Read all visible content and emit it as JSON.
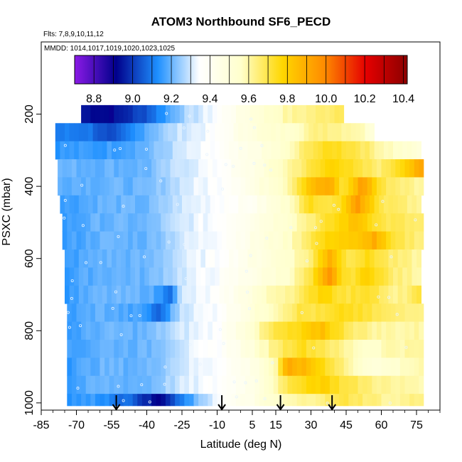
{
  "chart_data": {
    "type": "heatmap",
    "title": "ATOM3 Northbound SF6_PECD",
    "flights_label": "Flts: 7,8,9,10,11,12",
    "dates_label": "MMDD: 1014,1017,1019,1020,1023,1025",
    "xlabel": "Latitude (deg N)",
    "ylabel": "PSXC (mbar)",
    "xlim": [
      -85,
      85
    ],
    "ylim": [
      1020,
      0
    ],
    "x_ticks": [
      -85,
      -70,
      -55,
      -40,
      -25,
      -10,
      5,
      15,
      30,
      45,
      60,
      75
    ],
    "y_ticks": [
      200,
      400,
      600,
      800,
      1000
    ],
    "colorbar": {
      "min": 8.7,
      "max": 10.42,
      "ticks": [
        8.8,
        9.0,
        9.2,
        9.4,
        9.6,
        9.8,
        10.0,
        10.2,
        10.4
      ],
      "colors": [
        "#8b1ae6",
        "#00008b",
        "#1e90ff",
        "#ffffff",
        "#ffffcc",
        "#ffd700",
        "#ff8c00",
        "#e50000",
        "#8b0000"
      ]
    },
    "arrow_latitudes": [
      -53,
      -8,
      17,
      39
    ],
    "pressure_bands": [
      {
        "p": 200,
        "lat_min": -68,
        "lat_max": 44,
        "values": [
          [
            -68,
            8.95
          ],
          [
            -55,
            8.92
          ],
          [
            -40,
            9.05
          ],
          [
            -25,
            9.25
          ],
          [
            -10,
            9.35
          ],
          [
            5,
            9.5
          ],
          [
            20,
            9.6
          ],
          [
            35,
            9.65
          ],
          [
            44,
            9.7
          ]
        ]
      },
      {
        "p": 250,
        "lat_min": -79,
        "lat_max": 57,
        "values": [
          [
            -79,
            9.1
          ],
          [
            -65,
            9.1
          ],
          [
            -55,
            9.0
          ],
          [
            -40,
            9.2
          ],
          [
            -25,
            9.3
          ],
          [
            -10,
            9.35
          ],
          [
            5,
            9.5
          ],
          [
            20,
            9.55
          ],
          [
            35,
            9.65
          ],
          [
            50,
            9.6
          ],
          [
            57,
            9.5
          ]
        ]
      },
      {
        "p": 300,
        "lat_min": -79,
        "lat_max": 76,
        "values": [
          [
            -79,
            9.15
          ],
          [
            -60,
            9.15
          ],
          [
            -40,
            9.2
          ],
          [
            -25,
            9.3
          ],
          [
            -10,
            9.35
          ],
          [
            5,
            9.45
          ],
          [
            20,
            9.55
          ],
          [
            30,
            9.7
          ],
          [
            40,
            9.75
          ],
          [
            50,
            9.7
          ],
          [
            60,
            9.6
          ],
          [
            76,
            9.5
          ]
        ]
      },
      {
        "p": 350,
        "lat_min": -78,
        "lat_max": 77,
        "values": [
          [
            -78,
            9.2
          ],
          [
            -60,
            9.2
          ],
          [
            -40,
            9.2
          ],
          [
            -25,
            9.3
          ],
          [
            -10,
            9.35
          ],
          [
            5,
            9.45
          ],
          [
            20,
            9.6
          ],
          [
            30,
            9.7
          ],
          [
            40,
            9.8
          ],
          [
            50,
            9.7
          ],
          [
            60,
            9.65
          ],
          [
            77,
            9.9
          ]
        ]
      },
      {
        "p": 400,
        "lat_min": -78,
        "lat_max": 77,
        "values": [
          [
            -78,
            9.2
          ],
          [
            -60,
            9.2
          ],
          [
            -40,
            9.2
          ],
          [
            -25,
            9.3
          ],
          [
            -10,
            9.35
          ],
          [
            5,
            9.45
          ],
          [
            20,
            9.6
          ],
          [
            30,
            9.85
          ],
          [
            38,
            9.9
          ],
          [
            44,
            9.7
          ],
          [
            52,
            9.95
          ],
          [
            60,
            9.7
          ],
          [
            77,
            9.6
          ]
        ]
      },
      {
        "p": 450,
        "lat_min": -77,
        "lat_max": 77,
        "values": [
          [
            -77,
            9.15
          ],
          [
            -60,
            9.2
          ],
          [
            -40,
            9.2
          ],
          [
            -25,
            9.3
          ],
          [
            -10,
            9.35
          ],
          [
            5,
            9.4
          ],
          [
            20,
            9.55
          ],
          [
            30,
            9.75
          ],
          [
            40,
            9.7
          ],
          [
            50,
            9.95
          ],
          [
            60,
            9.7
          ],
          [
            77,
            9.6
          ]
        ]
      },
      {
        "p": 500,
        "lat_min": -76,
        "lat_max": 77,
        "values": [
          [
            -76,
            9.15
          ],
          [
            -60,
            9.2
          ],
          [
            -40,
            9.2
          ],
          [
            -25,
            9.3
          ],
          [
            -10,
            9.35
          ],
          [
            5,
            9.45
          ],
          [
            20,
            9.55
          ],
          [
            30,
            9.65
          ],
          [
            40,
            9.75
          ],
          [
            50,
            9.85
          ],
          [
            60,
            9.7
          ],
          [
            77,
            9.65
          ]
        ]
      },
      {
        "p": 550,
        "lat_min": -76,
        "lat_max": 77,
        "values": [
          [
            -76,
            9.15
          ],
          [
            -60,
            9.2
          ],
          [
            -40,
            9.2
          ],
          [
            -25,
            9.3
          ],
          [
            -10,
            9.35
          ],
          [
            5,
            9.45
          ],
          [
            20,
            9.55
          ],
          [
            30,
            9.7
          ],
          [
            40,
            9.8
          ],
          [
            50,
            9.8
          ],
          [
            57,
            9.9
          ],
          [
            65,
            9.7
          ],
          [
            77,
            9.65
          ]
        ]
      },
      {
        "p": 600,
        "lat_min": -75,
        "lat_max": 77,
        "values": [
          [
            -75,
            9.15
          ],
          [
            -60,
            9.2
          ],
          [
            -40,
            9.2
          ],
          [
            -25,
            9.3
          ],
          [
            -10,
            9.35
          ],
          [
            5,
            9.45
          ],
          [
            20,
            9.55
          ],
          [
            30,
            9.65
          ],
          [
            38,
            9.9
          ],
          [
            45,
            9.7
          ],
          [
            55,
            9.75
          ],
          [
            65,
            9.65
          ],
          [
            77,
            9.6
          ]
        ]
      },
      {
        "p": 650,
        "lat_min": -75,
        "lat_max": 77,
        "values": [
          [
            -75,
            9.15
          ],
          [
            -60,
            9.2
          ],
          [
            -40,
            9.2
          ],
          [
            -25,
            9.3
          ],
          [
            -10,
            9.35
          ],
          [
            5,
            9.45
          ],
          [
            20,
            9.55
          ],
          [
            30,
            9.7
          ],
          [
            38,
            9.95
          ],
          [
            45,
            9.7
          ],
          [
            55,
            9.8
          ],
          [
            65,
            9.65
          ],
          [
            77,
            9.6
          ]
        ]
      },
      {
        "p": 700,
        "lat_min": -75,
        "lat_max": 77,
        "values": [
          [
            -75,
            9.15
          ],
          [
            -60,
            9.2
          ],
          [
            -40,
            9.2
          ],
          [
            -30,
            9.1
          ],
          [
            -25,
            9.3
          ],
          [
            -10,
            9.35
          ],
          [
            5,
            9.5
          ],
          [
            15,
            9.6
          ],
          [
            25,
            9.65
          ],
          [
            35,
            9.8
          ],
          [
            45,
            9.7
          ],
          [
            55,
            9.75
          ],
          [
            65,
            9.6
          ],
          [
            77,
            9.7
          ]
        ]
      },
      {
        "p": 750,
        "lat_min": -74,
        "lat_max": 77,
        "values": [
          [
            -74,
            9.15
          ],
          [
            -60,
            9.2
          ],
          [
            -40,
            9.15
          ],
          [
            -35,
            9.05
          ],
          [
            -25,
            9.3
          ],
          [
            -10,
            9.35
          ],
          [
            5,
            9.5
          ],
          [
            15,
            9.6
          ],
          [
            25,
            9.7
          ],
          [
            35,
            9.7
          ],
          [
            45,
            9.75
          ],
          [
            55,
            9.7
          ],
          [
            65,
            9.65
          ],
          [
            77,
            9.65
          ]
        ]
      },
      {
        "p": 800,
        "lat_min": -74,
        "lat_max": 77,
        "values": [
          [
            -74,
            9.15
          ],
          [
            -60,
            9.2
          ],
          [
            -40,
            9.2
          ],
          [
            -25,
            9.3
          ],
          [
            -10,
            9.35
          ],
          [
            5,
            9.55
          ],
          [
            15,
            9.7
          ],
          [
            25,
            9.75
          ],
          [
            35,
            9.85
          ],
          [
            40,
            9.75
          ],
          [
            50,
            9.65
          ],
          [
            60,
            9.6
          ],
          [
            77,
            9.6
          ]
        ]
      },
      {
        "p": 850,
        "lat_min": -74,
        "lat_max": 77,
        "values": [
          [
            -74,
            9.15
          ],
          [
            -60,
            9.2
          ],
          [
            -40,
            9.2
          ],
          [
            -25,
            9.3
          ],
          [
            -10,
            9.35
          ],
          [
            5,
            9.5
          ],
          [
            15,
            9.65
          ],
          [
            25,
            9.75
          ],
          [
            35,
            9.7
          ],
          [
            45,
            9.6
          ],
          [
            55,
            9.55
          ],
          [
            65,
            9.6
          ],
          [
            77,
            9.6
          ]
        ]
      },
      {
        "p": 900,
        "lat_min": -74,
        "lat_max": 77,
        "values": [
          [
            -74,
            9.15
          ],
          [
            -60,
            9.2
          ],
          [
            -40,
            9.2
          ],
          [
            -25,
            9.3
          ],
          [
            -10,
            9.35
          ],
          [
            5,
            9.45
          ],
          [
            15,
            9.6
          ],
          [
            20,
            9.9
          ],
          [
            28,
            9.85
          ],
          [
            40,
            9.7
          ],
          [
            50,
            9.55
          ],
          [
            60,
            9.5
          ],
          [
            77,
            9.6
          ]
        ]
      },
      {
        "p": 950,
        "lat_min": -74,
        "lat_max": 77,
        "values": [
          [
            -74,
            9.15
          ],
          [
            -60,
            9.2
          ],
          [
            -40,
            9.2
          ],
          [
            -25,
            9.3
          ],
          [
            -10,
            9.35
          ],
          [
            5,
            9.45
          ],
          [
            15,
            9.6
          ],
          [
            25,
            9.75
          ],
          [
            35,
            9.8
          ],
          [
            45,
            9.7
          ],
          [
            55,
            9.65
          ],
          [
            65,
            9.6
          ],
          [
            77,
            9.6
          ]
        ]
      },
      {
        "p": 1000,
        "lat_min": -74,
        "lat_max": 77,
        "values": [
          [
            -74,
            9.15
          ],
          [
            -60,
            9.15
          ],
          [
            -45,
            9.05
          ],
          [
            -35,
            8.9
          ],
          [
            -25,
            9.1
          ],
          [
            -10,
            9.35
          ],
          [
            5,
            9.45
          ],
          [
            15,
            9.55
          ],
          [
            25,
            9.6
          ],
          [
            35,
            9.65
          ],
          [
            45,
            9.7
          ],
          [
            55,
            9.65
          ],
          [
            65,
            9.6
          ],
          [
            77,
            9.65
          ]
        ]
      }
    ]
  }
}
